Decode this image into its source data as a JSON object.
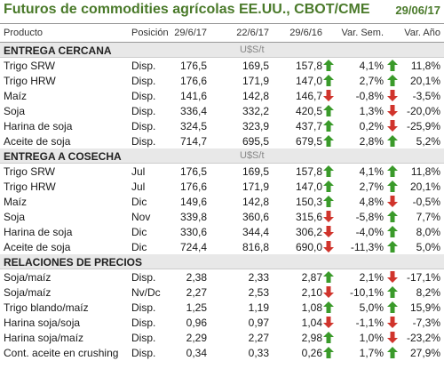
{
  "header": {
    "title": "Futuros de commodities agrícolas EE.UU., CBOT/CME",
    "date": "29/06/17"
  },
  "columns": [
    "Producto",
    "Posición",
    "29/6/17",
    "22/6/17",
    "29/6/16",
    "Var. Sem.",
    "Var. Año"
  ],
  "colors": {
    "title": "#4a7a2a",
    "up": "#3a9a2a",
    "down": "#d0342c",
    "section_bg": "#e8e8e8"
  },
  "sections": [
    {
      "title": "ENTREGA CERCANA",
      "unit": "U$S/t",
      "rows": [
        {
          "name": "Trigo SRW",
          "pos": "Disp.",
          "v1": "176,5",
          "v2": "169,5",
          "v3": "157,8",
          "a1": "up",
          "sem": "4,1%",
          "a2": "up",
          "ano": "11,8%"
        },
        {
          "name": "Trigo HRW",
          "pos": "Disp.",
          "v1": "176,6",
          "v2": "171,9",
          "v3": "147,0",
          "a1": "up",
          "sem": "2,7%",
          "a2": "up",
          "ano": "20,1%"
        },
        {
          "name": "Maíz",
          "pos": "Disp.",
          "v1": "141,6",
          "v2": "142,8",
          "v3": "146,7",
          "a1": "down",
          "sem": "-0,8%",
          "a2": "down",
          "ano": "-3,5%"
        },
        {
          "name": "Soja",
          "pos": "Disp.",
          "v1": "336,4",
          "v2": "332,2",
          "v3": "420,5",
          "a1": "up",
          "sem": "1,3%",
          "a2": "down",
          "ano": "-20,0%"
        },
        {
          "name": "Harina de soja",
          "pos": "Disp.",
          "v1": "324,5",
          "v2": "323,9",
          "v3": "437,7",
          "a1": "up",
          "sem": "0,2%",
          "a2": "down",
          "ano": "-25,9%"
        },
        {
          "name": "Aceite de soja",
          "pos": "Disp.",
          "v1": "714,7",
          "v2": "695,5",
          "v3": "679,5",
          "a1": "up",
          "sem": "2,8%",
          "a2": "up",
          "ano": "5,2%"
        }
      ]
    },
    {
      "title": "ENTREGA A COSECHA",
      "unit": "U$S/t",
      "rows": [
        {
          "name": "Trigo SRW",
          "pos": "Jul",
          "v1": "176,5",
          "v2": "169,5",
          "v3": "157,8",
          "a1": "up",
          "sem": "4,1%",
          "a2": "up",
          "ano": "11,8%"
        },
        {
          "name": "Trigo HRW",
          "pos": "Jul",
          "v1": "176,6",
          "v2": "171,9",
          "v3": "147,0",
          "a1": "up",
          "sem": "2,7%",
          "a2": "up",
          "ano": "20,1%"
        },
        {
          "name": "Maíz",
          "pos": "Dic",
          "v1": "149,6",
          "v2": "142,8",
          "v3": "150,3",
          "a1": "up",
          "sem": "4,8%",
          "a2": "down",
          "ano": "-0,5%"
        },
        {
          "name": "Soja",
          "pos": "Nov",
          "v1": "339,8",
          "v2": "360,6",
          "v3": "315,6",
          "a1": "down",
          "sem": "-5,8%",
          "a2": "up",
          "ano": "7,7%"
        },
        {
          "name": "Harina de soja",
          "pos": "Dic",
          "v1": "330,6",
          "v2": "344,4",
          "v3": "306,2",
          "a1": "down",
          "sem": "-4,0%",
          "a2": "up",
          "ano": "8,0%"
        },
        {
          "name": "Aceite de soja",
          "pos": "Dic",
          "v1": "724,4",
          "v2": "816,8",
          "v3": "690,0",
          "a1": "down",
          "sem": "-11,3%",
          "a2": "up",
          "ano": "5,0%"
        }
      ]
    },
    {
      "title": "RELACIONES DE PRECIOS",
      "unit": "",
      "rows": [
        {
          "name": "Soja/maíz",
          "pos": "Disp.",
          "v1": "2,38",
          "v2": "2,33",
          "v3": "2,87",
          "a1": "up",
          "sem": "2,1%",
          "a2": "down",
          "ano": "-17,1%"
        },
        {
          "name": "Soja/maíz",
          "pos": "Nv/Dc",
          "v1": "2,27",
          "v2": "2,53",
          "v3": "2,10",
          "a1": "down",
          "sem": "-10,1%",
          "a2": "up",
          "ano": "8,2%"
        },
        {
          "name": "Trigo blando/maíz",
          "pos": "Disp.",
          "v1": "1,25",
          "v2": "1,19",
          "v3": "1,08",
          "a1": "up",
          "sem": "5,0%",
          "a2": "up",
          "ano": "15,9%"
        },
        {
          "name": "Harina soja/soja",
          "pos": "Disp.",
          "v1": "0,96",
          "v2": "0,97",
          "v3": "1,04",
          "a1": "down",
          "sem": "-1,1%",
          "a2": "down",
          "ano": "-7,3%"
        },
        {
          "name": "Harina soja/maíz",
          "pos": "Disp.",
          "v1": "2,29",
          "v2": "2,27",
          "v3": "2,98",
          "a1": "up",
          "sem": "1,0%",
          "a2": "down",
          "ano": "-23,2%"
        },
        {
          "name": "Cont. aceite en crushing",
          "pos": "Disp.",
          "v1": "0,34",
          "v2": "0,33",
          "v3": "0,26",
          "a1": "up",
          "sem": "1,7%",
          "a2": "up",
          "ano": "27,9%"
        }
      ]
    }
  ]
}
